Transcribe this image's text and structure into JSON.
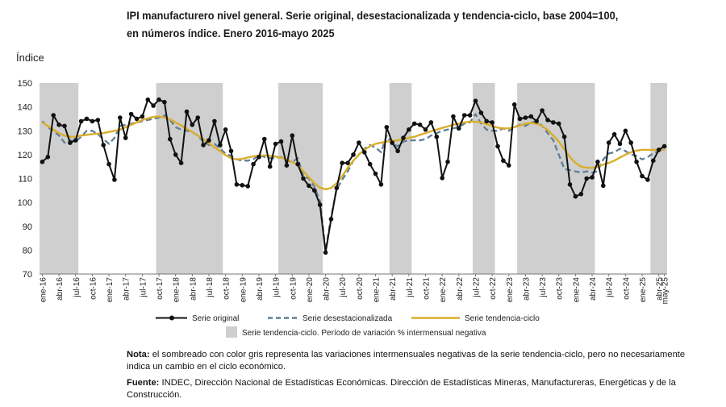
{
  "title_line1": "IPI manufacturero nivel general. Serie original, desestacionalizada y tendencia-ciclo, base 2004=100,",
  "title_line2": "en números índice. Enero 2016-mayo 2025",
  "note_label": "Nota:",
  "note_text": "el sombreado con color gris representa las variaciones intermensuales negativas de la serie tendencia-ciclo, pero no necesariamente indica un cambio en el ciclo económico.",
  "source_label": "Fuente:",
  "source_text": "INDEC, Dirección Nacional de Estadísticas Económicas. Dirección de Estadísticas Mineras, Manufactureras, Energéticas y de la Construcción.",
  "colors": {
    "original": "#111111",
    "seasonal": "#5f7f95",
    "trend": "#d9ae2c",
    "shade": "#cfcfcf"
  },
  "chart_data": {
    "type": "line",
    "ylabel": "Índice",
    "ylim": [
      70,
      150
    ],
    "yticks": [
      70,
      80,
      90,
      100,
      110,
      120,
      130,
      140,
      150
    ],
    "x_start": "ene-16",
    "n_months": 113,
    "x_tick_labels": [
      "ene-16",
      "abr-16",
      "jul-16",
      "oct-16",
      "ene-17",
      "abr-17",
      "jul-17",
      "oct-17",
      "ene-18",
      "abr-18",
      "jul-18",
      "oct-18",
      "ene-19",
      "abr-19",
      "jul-19",
      "oct-19",
      "ene-20",
      "abr-20",
      "jul-20",
      "oct-20",
      "ene-21",
      "abr-21",
      "jul-21",
      "oct-21",
      "ene-22",
      "abr-22",
      "jul-22",
      "oct-22",
      "ene-23",
      "abr-23",
      "jul-23",
      "oct-23",
      "ene-24",
      "abr-24",
      "jul-24",
      "oct-24",
      "ene-25",
      "abr-25",
      "may-25"
    ],
    "shaded_periods": [
      [
        0,
        6
      ],
      [
        21,
        32
      ],
      [
        43,
        50
      ],
      [
        63,
        66
      ],
      [
        78,
        81
      ],
      [
        86,
        99
      ],
      [
        110,
        112
      ]
    ],
    "shaded_legend": "Serie tendencia-ciclo. Período de variación % intermensual negativa",
    "series": [
      {
        "name": "Serie original",
        "values": [
          117,
          119,
          136.5,
          132.5,
          132,
          125,
          126,
          134,
          135,
          134,
          134.5,
          124,
          116,
          109.5,
          135.5,
          127,
          137,
          135,
          136,
          143,
          140.5,
          143,
          142,
          126.5,
          120,
          116.5,
          138,
          132.5,
          135.5,
          124,
          126,
          134,
          124,
          130.5,
          121.5,
          107.5,
          107.2,
          106.8,
          116,
          119,
          126.5,
          115,
          124.5,
          125.5,
          115.5,
          128,
          116,
          110,
          107,
          105,
          99,
          79,
          93,
          106,
          116.5,
          116.5,
          120,
          125,
          121,
          116,
          112,
          107.5,
          131.5,
          125,
          121.5,
          127,
          130.5,
          133,
          132.5,
          130.5,
          133.5,
          127.5,
          110.2,
          117,
          136,
          131,
          136.5,
          136.5,
          142.5,
          137.5,
          134,
          133.5,
          123.5,
          117.5,
          115.5,
          141,
          135,
          135.5,
          136,
          134,
          138.5,
          134.5,
          133.5,
          133,
          127.5,
          107.5,
          102.5,
          103.5,
          110,
          110.5,
          117,
          107,
          125,
          128.5,
          124.5,
          130,
          125,
          117,
          111,
          109.5,
          117.5,
          122,
          123.5
        ]
      },
      {
        "name": "Serie desestacionalizada",
        "values": [
          134,
          131.5,
          130,
          128,
          125,
          126,
          125.5,
          127.5,
          130,
          130,
          128.5,
          126.5,
          124.5,
          127,
          132,
          132.5,
          133,
          133.5,
          134,
          134.5,
          135,
          135.5,
          136.5,
          134.5,
          131.5,
          130.5,
          130,
          129.5,
          128,
          125.5,
          124,
          124.5,
          122.5,
          120.5,
          119.5,
          118,
          117.5,
          117.5,
          118,
          120,
          119,
          118.5,
          118.5,
          119,
          117.5,
          117,
          118.5,
          111,
          110,
          106.5,
          100.5,
          80,
          94,
          105.5,
          109.5,
          113,
          117.5,
          120,
          122.5,
          124,
          123,
          121,
          128,
          124.5,
          123.5,
          125.5,
          126,
          126,
          126,
          126.5,
          128,
          129,
          130,
          130.5,
          131,
          131.5,
          133,
          133.5,
          137,
          133,
          130.5,
          130,
          130,
          131,
          130,
          131.5,
          132.5,
          132,
          133.5,
          134,
          132,
          129,
          126,
          120,
          114,
          113.5,
          113,
          112.5,
          113,
          112.5,
          113,
          118,
          120.5,
          121,
          122.5,
          121.5,
          120,
          119.5,
          118,
          119,
          120.5,
          121.5,
          122
        ]
      },
      {
        "name": "Serie tendencia-ciclo",
        "values": [
          133.5,
          132,
          130.5,
          129,
          128,
          127.5,
          127.5,
          128,
          128.3,
          128.6,
          128.8,
          129,
          129.5,
          130,
          130.5,
          131.5,
          132.5,
          133.5,
          134.5,
          135.2,
          135.8,
          136,
          135.6,
          134.8,
          133.5,
          132.2,
          130.8,
          129.5,
          128,
          126.5,
          124.8,
          123,
          121.5,
          119.8,
          118.5,
          118,
          118.2,
          118.8,
          119.3,
          119.6,
          119.7,
          119.5,
          119.2,
          118.7,
          118,
          117,
          115.5,
          113,
          110.5,
          108,
          106.2,
          105.5,
          106,
          108,
          111,
          114.5,
          117.5,
          120,
          122,
          123.5,
          124.5,
          125,
          125.5,
          125.8,
          126,
          126.5,
          127,
          127.5,
          128.3,
          129,
          129.8,
          130.5,
          131.2,
          131.8,
          132.5,
          133,
          133.5,
          133.8,
          133.8,
          133.5,
          132.8,
          132,
          131.3,
          131,
          131,
          131.5,
          132.2,
          133,
          133.3,
          133,
          132,
          130.3,
          128,
          125.5,
          122.3,
          119,
          116.5,
          115,
          114.5,
          114.5,
          115,
          115.8,
          116.5,
          117.5,
          118.8,
          120,
          121,
          121.7,
          122,
          122,
          122,
          122,
          122
        ]
      }
    ]
  }
}
